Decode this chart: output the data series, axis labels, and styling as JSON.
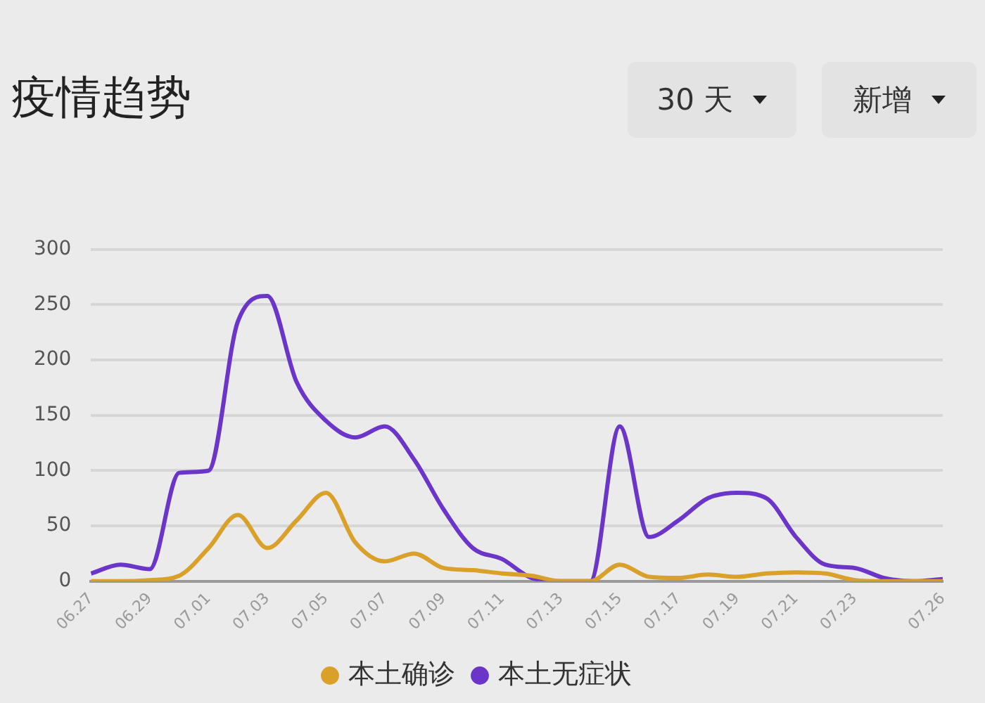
{
  "chart_data": {
    "type": "line",
    "title": "疫情趋势",
    "annotations": [
      "30 天",
      "新增"
    ],
    "categories": [
      "06.27",
      null,
      "06.29",
      null,
      "07.01",
      null,
      "07.03",
      null,
      "07.05",
      null,
      "07.07",
      null,
      "07.09",
      null,
      "07.11",
      null,
      "07.13",
      null,
      "07.15",
      null,
      "07.17",
      null,
      "07.19",
      null,
      "07.21",
      null,
      "07.23",
      null,
      null,
      "07.26"
    ],
    "series": [
      {
        "name": "本土确诊",
        "color": "#d9a02a",
        "values": [
          0,
          0,
          1,
          5,
          30,
          60,
          30,
          55,
          80,
          35,
          18,
          25,
          12,
          10,
          7,
          5,
          0,
          0,
          15,
          4,
          3,
          6,
          4,
          7,
          8,
          7,
          1,
          0,
          0,
          0
        ]
      },
      {
        "name": "本土无症状",
        "color": "#6a35c8",
        "values": [
          7,
          15,
          11,
          98,
          100,
          235,
          258,
          180,
          145,
          130,
          140,
          110,
          65,
          30,
          20,
          3,
          0,
          0,
          140,
          40,
          55,
          75,
          80,
          75,
          40,
          15,
          12,
          3,
          0,
          2
        ]
      }
    ],
    "ylim": [
      0,
      300
    ],
    "yticks": [
      0,
      50,
      100,
      150,
      200,
      250,
      300
    ],
    "grid": "y",
    "legend": "bottom",
    "marker": "none",
    "line_style": "solid"
  }
}
